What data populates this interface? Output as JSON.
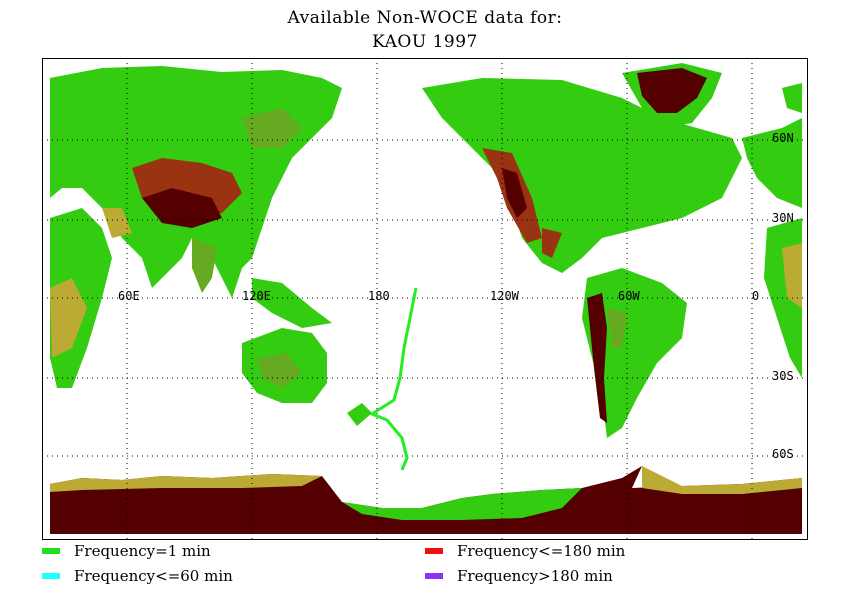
{
  "title_line1": "Available Non-WOCE data for:",
  "title_line2": "KAOU 1997",
  "lon_labels": [
    "60E",
    "120E",
    "180",
    "120W",
    "60W",
    "0"
  ],
  "lat_labels": [
    "60N",
    "30N",
    "30S",
    "60S"
  ],
  "legend": [
    {
      "label": "Frequency=1 min",
      "color": "#22dd22"
    },
    {
      "label": "Frequency<=60 min",
      "color": "#22ffff"
    },
    {
      "label": "Frequency<=180 min",
      "color": "#ee1111"
    },
    {
      "label": "Frequency>180 min",
      "color": "#8833ee"
    }
  ],
  "colors": {
    "ocean": "#ffffff",
    "lowland": "#33cc11",
    "mid": "#66aa22",
    "upland": "#bbaa33",
    "highland": "#993311",
    "ice": "#550000",
    "track": "#22ee22"
  }
}
